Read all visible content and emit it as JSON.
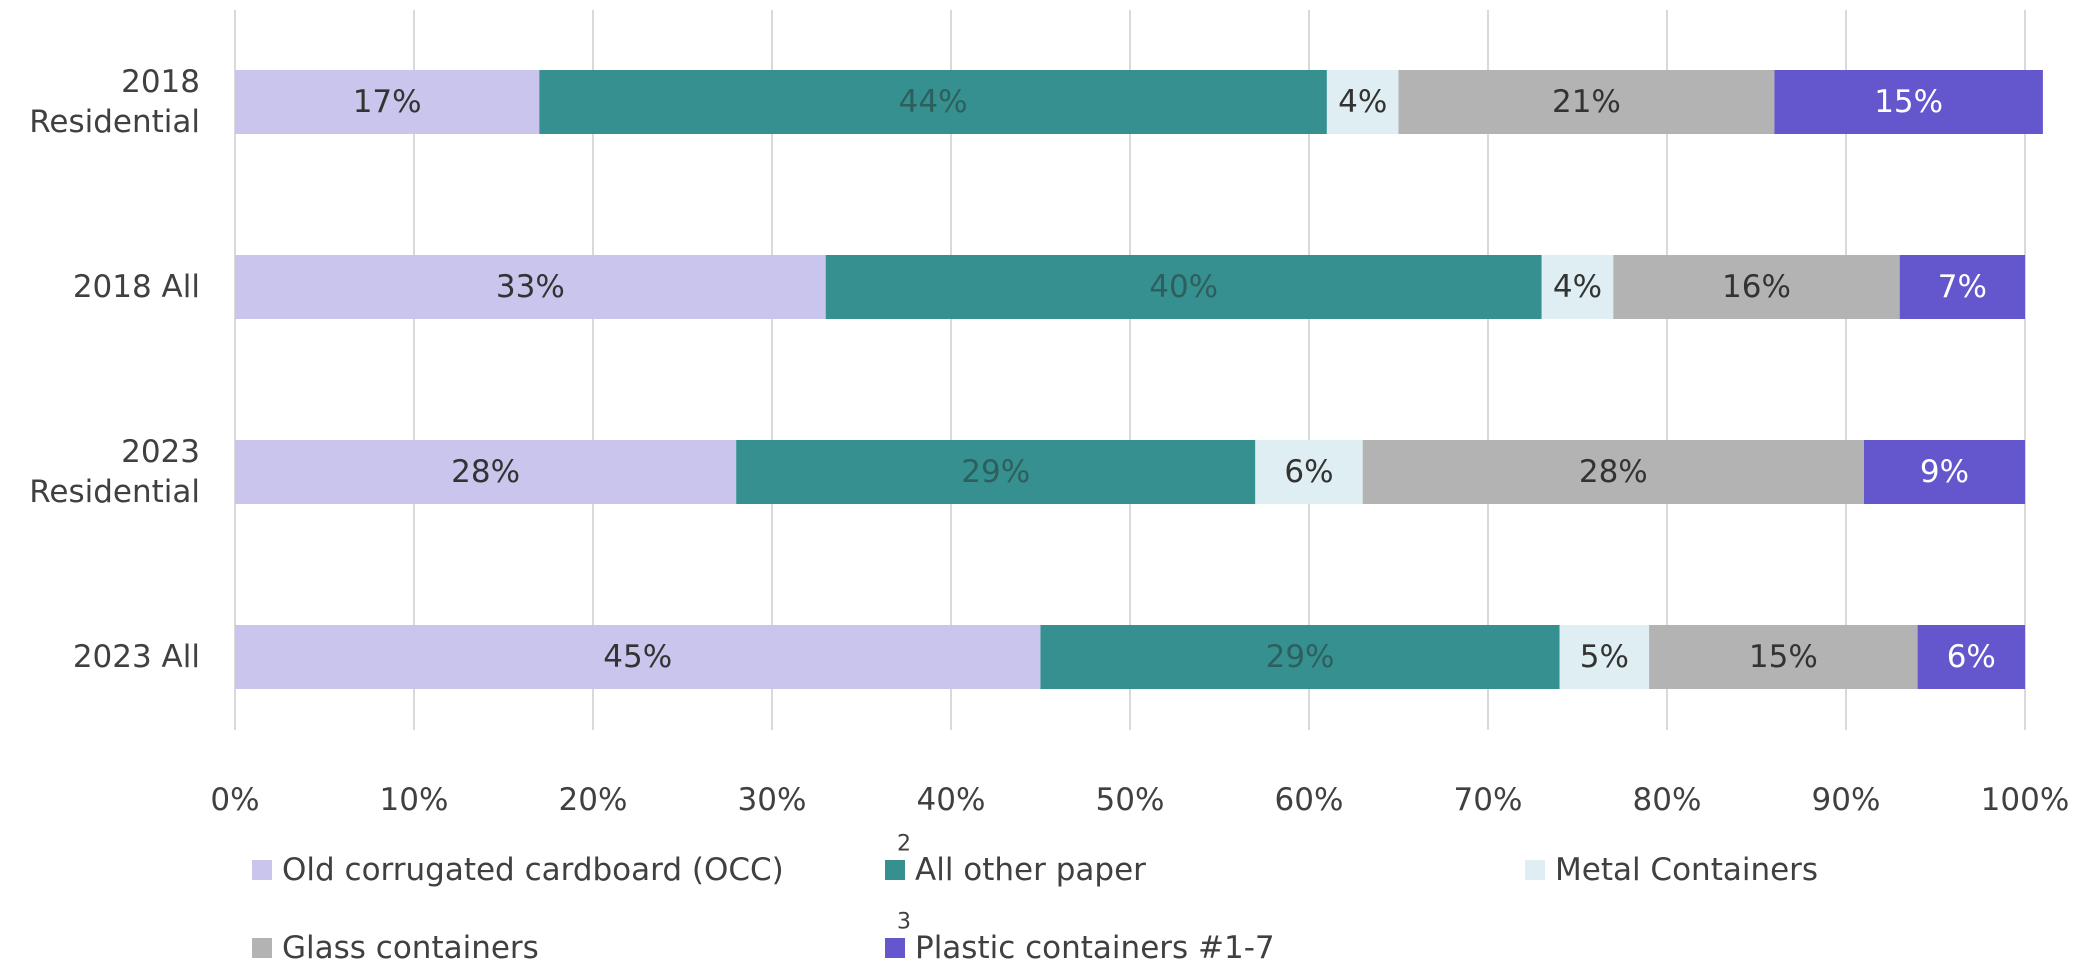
{
  "chart_data": {
    "type": "bar",
    "orientation": "horizontal",
    "stacked": true,
    "percent_stacked": true,
    "categories": [
      [
        "2018",
        "Residential"
      ],
      [
        "2018 All"
      ],
      [
        "2023",
        "Residential"
      ],
      [
        "2023 All"
      ]
    ],
    "series": [
      {
        "name": "Old corrugated cardboard (OCC)",
        "color": "#c9c5ec",
        "label_color": "#333333",
        "values": [
          17,
          33,
          28,
          45
        ],
        "data_labels": [
          "17%",
          "33%",
          "28%",
          "45%"
        ]
      },
      {
        "name": "All other paper",
        "superscript": "2",
        "color": "#36908f",
        "label_color": "#2e5f5f",
        "values": [
          44,
          40,
          29,
          29
        ],
        "data_labels": [
          "44%",
          "40%",
          "29%",
          "29%"
        ]
      },
      {
        "name": "Metal Containers",
        "color": "#deeef3",
        "label_color": "#333333",
        "values": [
          4,
          4,
          6,
          5
        ],
        "data_labels": [
          "4%",
          "4%",
          "6%",
          "5%"
        ]
      },
      {
        "name": "Glass containers",
        "color": "#b3b3b3",
        "label_color": "#333333",
        "values": [
          21,
          16,
          28,
          15
        ],
        "data_labels": [
          "21%",
          "16%",
          "28%",
          "15%"
        ]
      },
      {
        "name": "Plastic containers #1-7",
        "superscript": "3",
        "color": "#6457cd",
        "label_color": "#ffffff",
        "values": [
          15,
          7,
          9,
          6
        ],
        "data_labels": [
          "15%",
          "7%",
          "9%",
          "6%"
        ]
      }
    ],
    "xlim": [
      0,
      100
    ],
    "x_ticks": [
      0,
      10,
      20,
      30,
      40,
      50,
      60,
      70,
      80,
      90,
      100
    ],
    "x_tick_labels": [
      "0%",
      "10%",
      "20%",
      "30%",
      "40%",
      "50%",
      "60%",
      "70%",
      "80%",
      "90%",
      "100%"
    ],
    "grid": "vertical",
    "legend_position": "bottom",
    "title": "",
    "xlabel": "",
    "ylabel": ""
  }
}
